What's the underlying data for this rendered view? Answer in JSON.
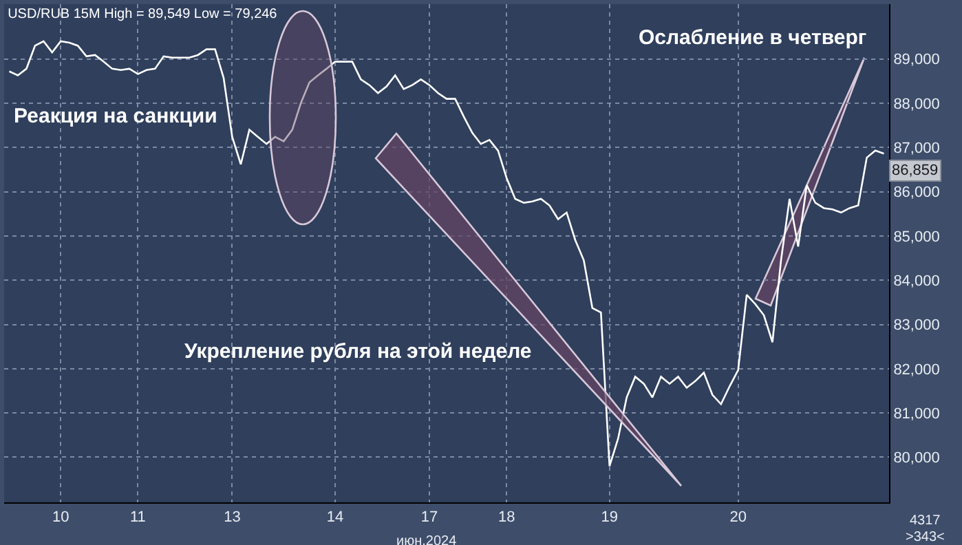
{
  "chart_data": {
    "type": "line",
    "title": "USD/RUB 15M High = 89,549 Low = 79,246",
    "xlabel": "июн.2024",
    "categories": [
      null,
      null,
      null,
      null,
      null,
      null,
      "10",
      null,
      null,
      null,
      null,
      null,
      null,
      null,
      null,
      "11",
      null,
      null,
      null,
      null,
      null,
      null,
      null,
      null,
      null,
      null,
      "13",
      null,
      null,
      null,
      null,
      null,
      null,
      null,
      null,
      null,
      null,
      null,
      "14",
      null,
      null,
      null,
      null,
      null,
      null,
      null,
      null,
      null,
      null,
      "17",
      null,
      null,
      null,
      null,
      null,
      null,
      null,
      null,
      "18",
      null,
      null,
      null,
      null,
      null,
      null,
      null,
      null,
      null,
      null,
      null,
      "19",
      null,
      null,
      null,
      null,
      null,
      null,
      null,
      null,
      null,
      null,
      null,
      null,
      null,
      null,
      "20",
      null,
      null,
      null,
      null,
      null,
      null,
      null,
      null,
      null,
      null,
      null,
      null,
      null,
      null,
      null,
      null,
      null
    ],
    "series": [
      {
        "color": "#ffffff",
        "values": [
          88720,
          88630,
          88780,
          89300,
          89400,
          89150,
          89400,
          89370,
          89300,
          89060,
          89090,
          88940,
          88780,
          88750,
          88780,
          88660,
          88750,
          88780,
          89060,
          89030,
          89030,
          89030,
          89090,
          89220,
          89220,
          88570,
          87240,
          86620,
          87400,
          87240,
          87080,
          87240,
          87140,
          87400,
          88000,
          88470,
          88630,
          88780,
          88940,
          88940,
          88940,
          88540,
          88410,
          88230,
          88380,
          88630,
          88320,
          88410,
          88540,
          88410,
          88230,
          88100,
          88100,
          87700,
          87330,
          87080,
          87170,
          86930,
          86310,
          85840,
          85750,
          85780,
          85840,
          85690,
          85380,
          85530,
          84910,
          84450,
          83370,
          83270,
          79800,
          80420,
          81350,
          81820,
          81660,
          81350,
          81820,
          81660,
          81820,
          81570,
          81720,
          81910,
          81410,
          81200,
          81600,
          81970,
          83670,
          83460,
          83210,
          82600,
          84450,
          85840,
          84760,
          86150,
          85750,
          85630,
          85600,
          85530,
          85630,
          85690,
          86770,
          86930,
          86860
        ]
      }
    ],
    "ylim": [
      78980,
      90240
    ],
    "yticks": [
      {
        "value": 80000,
        "label": "80,000"
      },
      {
        "value": 81000,
        "label": "81,000"
      },
      {
        "value": 82000,
        "label": "82,000"
      },
      {
        "value": 83000,
        "label": "83,000"
      },
      {
        "value": 84000,
        "label": "84,000"
      },
      {
        "value": 85000,
        "label": "85,000"
      },
      {
        "value": 86000,
        "label": "86,000"
      },
      {
        "value": 87000,
        "label": "87,000"
      },
      {
        "value": 88000,
        "label": "88,000"
      },
      {
        "value": 89000,
        "label": "89,000"
      }
    ],
    "annotations": [
      "Реакция на санкции",
      "Укрепление рубля на этой неделе",
      "Ослабление в четверг",
      "4317",
      ">343<",
      "86,859"
    ],
    "grid": true,
    "marker": "none",
    "line_style": "solid"
  }
}
